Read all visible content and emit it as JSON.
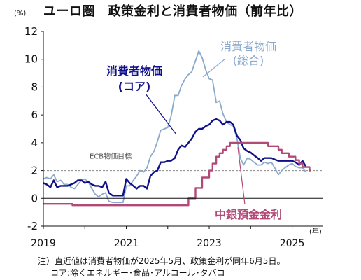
{
  "chart_data": {
    "type": "line",
    "title": "ユーロ圏　政策金利と消費者物価（前年比）",
    "y_unit": "(%)",
    "x_unit": "(年)",
    "ylim": [
      -2,
      12
    ],
    "yticks": [
      -2,
      0,
      2,
      4,
      6,
      8,
      10,
      12
    ],
    "xlim": [
      2019,
      2025.75
    ],
    "xticks": [
      2019,
      2021,
      2023,
      2025
    ],
    "x_tick_labels": [
      "2019",
      "2021",
      "2023",
      "2025"
    ],
    "grid": false,
    "reference_line": {
      "label": "ECB物価目標",
      "value": 2
    },
    "series": [
      {
        "name": "消費者物価（総合）",
        "label_lines": [
          "消費者物価",
          "(総合)"
        ],
        "color": "#8aaacd",
        "x": [
          2019.0,
          2019.08,
          2019.17,
          2019.25,
          2019.33,
          2019.42,
          2019.5,
          2019.58,
          2019.67,
          2019.75,
          2019.83,
          2019.92,
          2020.0,
          2020.08,
          2020.17,
          2020.25,
          2020.33,
          2020.42,
          2020.5,
          2020.58,
          2020.67,
          2020.75,
          2020.83,
          2020.92,
          2021.0,
          2021.08,
          2021.17,
          2021.25,
          2021.33,
          2021.42,
          2021.5,
          2021.58,
          2021.67,
          2021.75,
          2021.83,
          2021.92,
          2022.0,
          2022.08,
          2022.17,
          2022.25,
          2022.33,
          2022.42,
          2022.5,
          2022.58,
          2022.67,
          2022.75,
          2022.83,
          2022.92,
          2023.0,
          2023.08,
          2023.17,
          2023.25,
          2023.33,
          2023.42,
          2023.5,
          2023.58,
          2023.67,
          2023.75,
          2023.83,
          2023.92,
          2024.0,
          2024.08,
          2024.17,
          2024.25,
          2024.33,
          2024.42,
          2024.5,
          2024.58,
          2024.67,
          2024.75,
          2024.83,
          2024.92,
          2025.0,
          2025.08,
          2025.17,
          2025.25,
          2025.33
        ],
        "values": [
          1.4,
          1.5,
          1.4,
          1.7,
          1.2,
          1.3,
          1.0,
          1.0,
          0.8,
          0.7,
          1.0,
          1.3,
          1.4,
          1.2,
          0.7,
          0.3,
          0.1,
          0.3,
          0.4,
          -0.2,
          -0.3,
          -0.3,
          -0.3,
          -0.3,
          0.9,
          0.9,
          1.3,
          1.6,
          2.0,
          1.9,
          2.2,
          3.0,
          3.4,
          4.1,
          4.9,
          5.0,
          5.1,
          5.9,
          7.4,
          7.4,
          8.1,
          8.6,
          8.9,
          9.1,
          9.9,
          10.6,
          10.1,
          9.2,
          8.6,
          8.5,
          6.9,
          7.0,
          6.1,
          5.5,
          5.3,
          5.2,
          4.3,
          2.9,
          2.4,
          2.9,
          2.8,
          2.6,
          2.4,
          2.4,
          2.6,
          2.5,
          2.6,
          2.2,
          1.7,
          2.0,
          2.2,
          2.4,
          2.5,
          2.3,
          2.2,
          2.2,
          1.9
        ]
      },
      {
        "name": "消費者物価（コア）",
        "label_lines": [
          "消費者物価",
          "(コア)"
        ],
        "color": "#10108a",
        "x": [
          2019.0,
          2019.08,
          2019.17,
          2019.25,
          2019.33,
          2019.42,
          2019.5,
          2019.58,
          2019.67,
          2019.75,
          2019.83,
          2019.92,
          2020.0,
          2020.08,
          2020.17,
          2020.25,
          2020.33,
          2020.42,
          2020.5,
          2020.58,
          2020.67,
          2020.75,
          2020.83,
          2020.92,
          2021.0,
          2021.08,
          2021.17,
          2021.25,
          2021.33,
          2021.42,
          2021.5,
          2021.58,
          2021.67,
          2021.75,
          2021.83,
          2021.92,
          2022.0,
          2022.08,
          2022.17,
          2022.25,
          2022.33,
          2022.42,
          2022.5,
          2022.58,
          2022.67,
          2022.75,
          2022.83,
          2022.92,
          2023.0,
          2023.08,
          2023.17,
          2023.25,
          2023.33,
          2023.42,
          2023.5,
          2023.58,
          2023.67,
          2023.75,
          2023.83,
          2023.92,
          2024.0,
          2024.08,
          2024.17,
          2024.25,
          2024.33,
          2024.42,
          2024.5,
          2024.58,
          2024.67,
          2024.75,
          2024.83,
          2024.92,
          2025.0,
          2025.08,
          2025.17,
          2025.25,
          2025.33
        ],
        "values": [
          1.1,
          1.0,
          0.8,
          1.3,
          0.8,
          0.9,
          0.9,
          0.9,
          1.0,
          1.1,
          1.3,
          1.3,
          1.1,
          1.2,
          1.0,
          0.9,
          0.9,
          0.8,
          1.2,
          0.4,
          0.2,
          0.2,
          0.2,
          0.2,
          1.4,
          1.1,
          0.9,
          0.7,
          0.9,
          0.9,
          0.7,
          1.6,
          1.9,
          2.0,
          2.6,
          2.6,
          2.7,
          2.7,
          2.9,
          3.5,
          3.8,
          3.7,
          4.0,
          4.3,
          4.8,
          5.0,
          5.0,
          5.2,
          5.3,
          5.6,
          5.7,
          5.6,
          5.3,
          5.5,
          5.5,
          5.3,
          4.5,
          4.2,
          3.6,
          3.4,
          3.3,
          3.1,
          2.9,
          2.7,
          2.9,
          2.9,
          2.9,
          2.8,
          2.7,
          2.7,
          2.7,
          2.7,
          2.7,
          2.6,
          2.4,
          2.7,
          2.3
        ]
      },
      {
        "name": "中銀預金金利",
        "label_lines": [
          "中銀預金金利"
        ],
        "color": "#b24a78",
        "step": true,
        "x": [
          2019.0,
          2019.7,
          2022.5,
          2022.67,
          2022.83,
          2023.0,
          2023.08,
          2023.17,
          2023.25,
          2023.33,
          2023.42,
          2023.5,
          2023.67,
          2024.42,
          2024.67,
          2024.75,
          2024.92,
          2025.08,
          2025.17,
          2025.25,
          2025.42
        ],
        "values": [
          -0.4,
          -0.5,
          0.0,
          0.75,
          1.5,
          2.0,
          2.5,
          3.0,
          3.25,
          3.5,
          3.75,
          4.0,
          4.0,
          3.75,
          3.5,
          3.25,
          3.0,
          2.75,
          2.5,
          2.25,
          2.0
        ]
      }
    ],
    "notes": [
      "注）直近値は消費者物価が2025年5月、政策金利が同年6月5日。",
      "コア:除くエネルギー･食品･アルコール･タバコ"
    ]
  }
}
